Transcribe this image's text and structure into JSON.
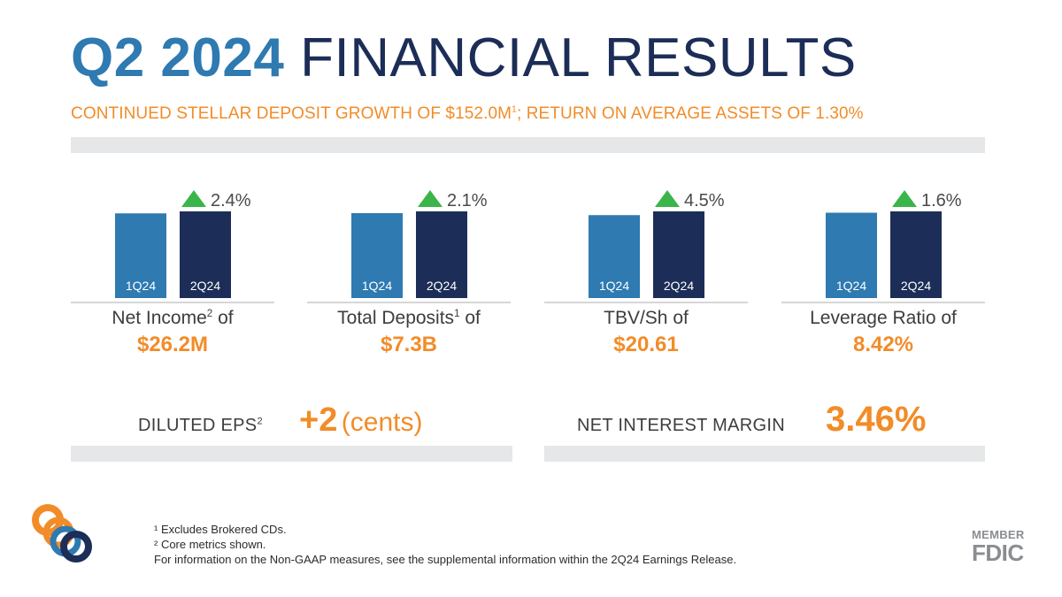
{
  "header": {
    "title_highlight": "Q2 2024",
    "title_rest": "FINANCIAL RESULTS",
    "subtitle_part1": "CONTINUED STELLAR DEPOSIT GROWTH OF $152.0M",
    "subtitle_sup": "1",
    "subtitle_part2": "; RETURN ON AVERAGE ASSETS OF 1.30%"
  },
  "chart_data": [
    {
      "type": "bar",
      "categories": [
        "1Q24",
        "2Q24"
      ],
      "change_label": "2.4%",
      "change_direction": "up",
      "label": "Net Income",
      "label_sup": "2",
      "label_suffix": "of",
      "value_label": "$26.2M",
      "values": [
        25.6,
        26.2
      ]
    },
    {
      "type": "bar",
      "categories": [
        "1Q24",
        "2Q24"
      ],
      "change_label": "2.1%",
      "change_direction": "up",
      "label": "Total Deposits",
      "label_sup": "1",
      "label_suffix": "of",
      "value_label": "$7.3B",
      "values": [
        7.15,
        7.3
      ]
    },
    {
      "type": "bar",
      "categories": [
        "1Q24",
        "2Q24"
      ],
      "change_label": "4.5%",
      "change_direction": "up",
      "label": "TBV/Sh",
      "label_sup": "",
      "label_suffix": "of",
      "value_label": "$20.61",
      "values": [
        19.72,
        20.61
      ]
    },
    {
      "type": "bar",
      "categories": [
        "1Q24",
        "2Q24"
      ],
      "change_label": "1.6%",
      "change_direction": "up",
      "label": "Leverage Ratio",
      "label_sup": "",
      "label_suffix": "of",
      "value_label": "8.42%",
      "values": [
        8.29,
        8.42
      ]
    }
  ],
  "eps": {
    "label": "DILUTED EPS",
    "label_sup": "2",
    "value": "+2",
    "unit": "(cents)"
  },
  "nim": {
    "label": "NET INTEREST MARGIN",
    "value": "3.46%"
  },
  "footnotes": [
    "¹ Excludes Brokered CDs.",
    "² Core metrics shown.",
    "For information on the Non-GAAP measures, see the supplemental information within the 2Q24 Earnings Release."
  ],
  "fdic": {
    "member": "MEMBER",
    "name": "FDIC"
  },
  "colors": {
    "bar_prior": "#2e7ab1",
    "bar_current": "#1c2d57",
    "accent": "#f28c28",
    "up_arrow": "#3bb54a"
  }
}
